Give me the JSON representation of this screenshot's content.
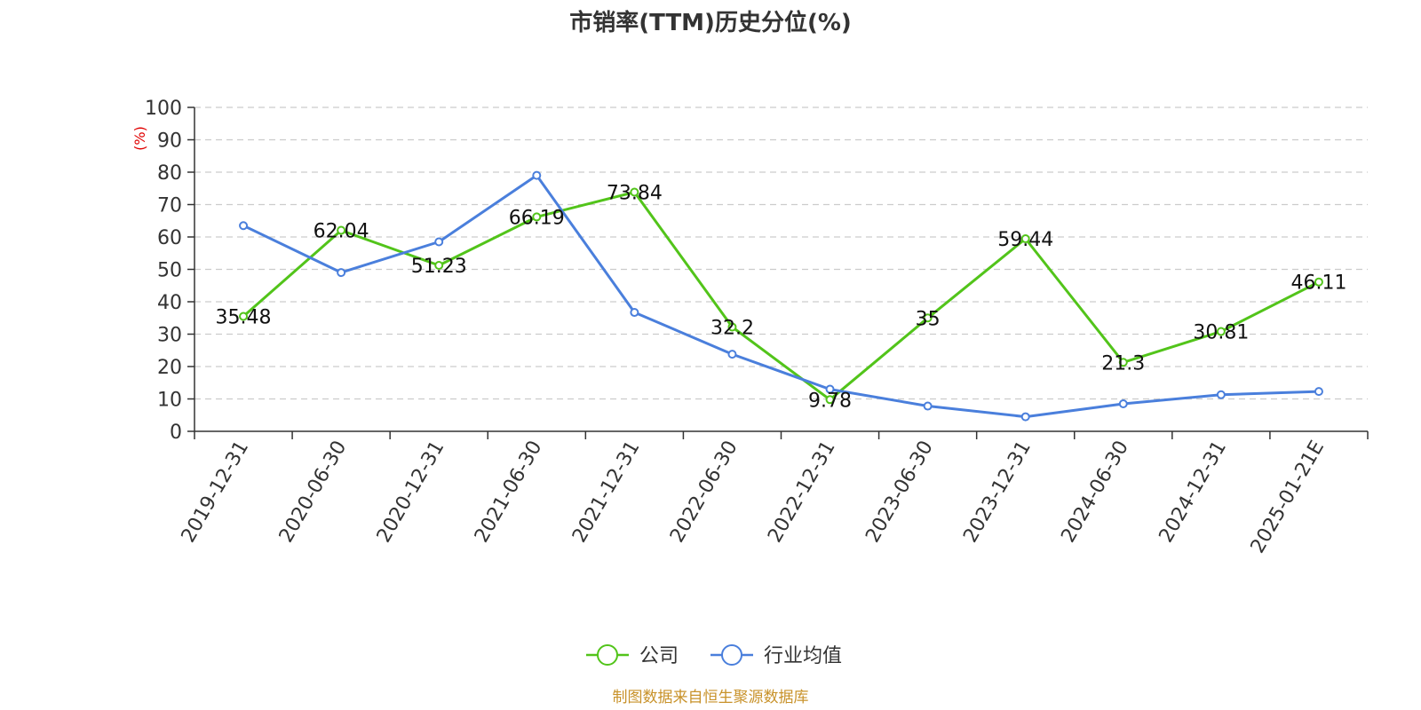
{
  "chart_data": {
    "type": "line",
    "title": "市销率(TTM)历史分位(%)",
    "ylabel": "(%)",
    "ylim": [
      0,
      100
    ],
    "yticks": [
      0,
      10,
      20,
      30,
      40,
      50,
      60,
      70,
      80,
      90,
      100
    ],
    "grid": true,
    "legend_position": "bottom-center",
    "categories": [
      "2019-12-31",
      "2020-06-30",
      "2020-12-31",
      "2021-06-30",
      "2021-12-31",
      "2022-06-30",
      "2022-12-31",
      "2023-06-30",
      "2023-12-31",
      "2024-06-30",
      "2024-12-31",
      "2025-01-21E"
    ],
    "series": [
      {
        "name": "公司",
        "color": "#52c41a",
        "values": [
          35.48,
          62.04,
          51.23,
          66.19,
          73.84,
          32.2,
          9.78,
          35,
          59.44,
          21.3,
          30.81,
          46.11
        ],
        "labels": [
          "35.48",
          "62.04",
          "51.23",
          "66.19",
          "73.84",
          "32.2",
          "9.78",
          "35",
          "59.44",
          "21.3",
          "30.81",
          "46.11"
        ]
      },
      {
        "name": "行业均值",
        "color": "#4a7fdc",
        "values": [
          63.5,
          49,
          58.5,
          79,
          36.7,
          23.8,
          13,
          7.8,
          4.5,
          8.5,
          11.3,
          12.3
        ]
      }
    ],
    "source": "制图数据来自恒生聚源数据库"
  },
  "colors": {
    "axis": "#333333",
    "grid": "#cccccc",
    "ylabel": "#e00000",
    "source": "#c8922a"
  }
}
